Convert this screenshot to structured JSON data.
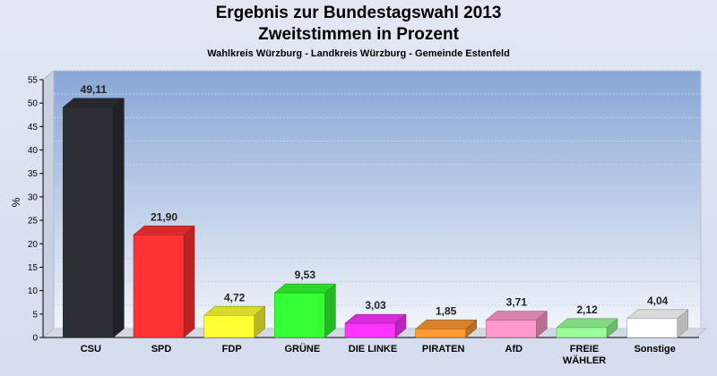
{
  "title": "Ergebnis zur Bundestagswahl 2013",
  "title2": "Zweitstimmen in Prozent",
  "subtitle": "Wahlkreis Würzburg - Landkreis Würzburg - Gemeinde Estenfeld",
  "chart_data": {
    "type": "bar",
    "title": "Ergebnis zur Bundestagswahl 2013 Zweitstimmen in Prozent",
    "subtitle": "Wahlkreis Würzburg - Landkreis Würzburg - Gemeinde Estenfeld",
    "xlabel": "",
    "ylabel": "%",
    "ylim": [
      0,
      55
    ],
    "yticks": [
      0,
      5,
      10,
      15,
      20,
      25,
      30,
      35,
      40,
      45,
      50,
      55
    ],
    "grid": true,
    "categories": [
      "CSU",
      "SPD",
      "FDP",
      "GRÜNE",
      "DIE LINKE",
      "PIRATEN",
      "AfD",
      "FREIE\nWÄHLER",
      "Sonstige"
    ],
    "values": [
      49.11,
      21.9,
      4.72,
      9.53,
      3.03,
      1.85,
      3.71,
      2.12,
      4.04
    ],
    "labels": [
      "49,11",
      "21,90",
      "4,72",
      "9,53",
      "3,03",
      "1,85",
      "3,71",
      "2,12",
      "4,04"
    ],
    "colors": [
      "#2d2f36",
      "#ff3333",
      "#ffff33",
      "#33ff33",
      "#ff33ff",
      "#ff9933",
      "#ff99cc",
      "#99ff99",
      "#ffffff"
    ]
  }
}
